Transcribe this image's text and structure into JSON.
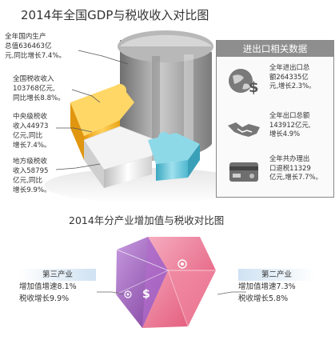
{
  "titles": {
    "top": "2014年全国GDP与税收收入对比图",
    "bottom": "2014年分产业增加值与税收对比图"
  },
  "callouts": {
    "gdp": [
      "全年国内生产",
      "总值636463亿",
      "元,同比增长7.4%。"
    ],
    "tax": [
      "全国税收收入",
      "103768亿元,",
      "同比增长8.8%。"
    ],
    "central": [
      "中央级税收",
      "收入44973",
      "亿元,同比",
      "增长7.4%。"
    ],
    "local": [
      "地方级税收",
      "收入58795",
      "亿元,同比",
      "增长9.9%。"
    ]
  },
  "trade_panel": {
    "title": "进出口相关数据",
    "items": [
      {
        "lines": [
          "全年进出口总",
          "额264335亿",
          "元,增长2.3%。"
        ],
        "icon": "globe-dollar-icon"
      },
      {
        "lines": [
          "全年出口总额",
          "143912亿元,",
          "增长4.9%"
        ],
        "icon": "handshake-icon"
      },
      {
        "lines": [
          "全年共办理出",
          "口退税11329",
          "亿元,增长7.7%。"
        ],
        "icon": "credit-card-icon"
      }
    ]
  },
  "industry": {
    "tertiary": {
      "label": "第三产业",
      "lines": [
        "增加值增速8.1%",
        "税收增长9.9%"
      ]
    },
    "secondary": {
      "label": "第二产业",
      "lines": [
        "增加值增速7.3%",
        "税收增长5.8%"
      ]
    }
  },
  "chart_data": [
    {
      "type": "pie",
      "title": "2014年全国GDP与税收收入对比图",
      "unit": "亿元",
      "categories": [
        "全年国内生产总值",
        "全国税收收入",
        "中央级税收收入",
        "地方级税收收入"
      ],
      "values": [
        636463,
        103768,
        44973,
        58795
      ],
      "growth_pct": [
        7.4,
        8.8,
        7.4,
        9.9
      ]
    },
    {
      "type": "table",
      "title": "2014年分产业增加值与税收对比图",
      "categories": [
        "第三产业",
        "第二产业"
      ],
      "series": [
        {
          "name": "增加值增速",
          "values": [
            8.1,
            7.3
          ]
        },
        {
          "name": "税收增长",
          "values": [
            9.9,
            5.8
          ]
        }
      ],
      "unit": "%"
    }
  ],
  "colors": {
    "gdp_gray": "#9a9a9a",
    "tax_yellow": "#f2b21e",
    "central_white": "#e8e8e8",
    "local_teal": "#5fc3d6",
    "panel_gray": "#8e8e8e",
    "gem_purple": "#9b55b8",
    "gem_pink": "#ea5a7e"
  }
}
